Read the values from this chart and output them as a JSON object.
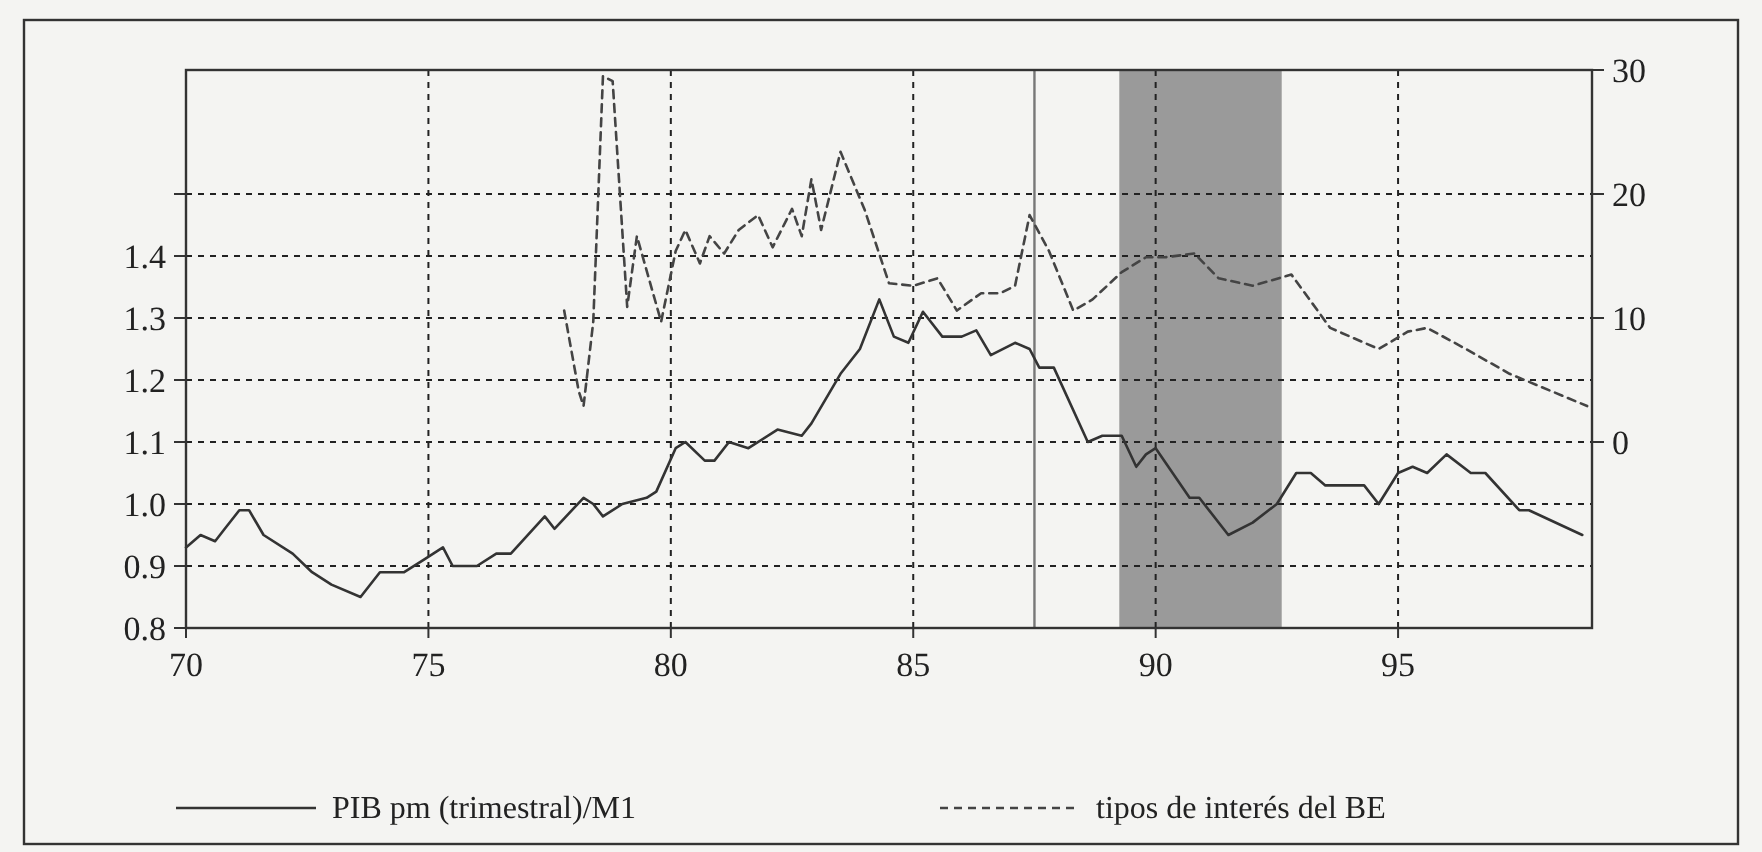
{
  "chart_data": {
    "type": "line",
    "xlim": [
      70,
      99
    ],
    "xticks": [
      70,
      75,
      80,
      85,
      90,
      95
    ],
    "ylim": [
      0.8,
      1.7
    ],
    "yticks": [
      0.8,
      0.9,
      {
        "value": 1.0,
        "label": "1.0"
      },
      1.1,
      1.2,
      1.3,
      1.4,
      {
        "value": 1.5,
        "label": null
      }
    ],
    "y2lim": [
      -15,
      30
    ],
    "y2ticks": [
      0,
      10,
      20,
      30
    ],
    "grid": true,
    "legend": "bottom",
    "bands": [
      {
        "axis": "x",
        "from": 89.25,
        "to": 92.6,
        "color": "#9a9a9a"
      }
    ],
    "ref_lines": [
      {
        "axis": "x",
        "value": 87.5,
        "color": "#777777",
        "line_style": "solid"
      }
    ],
    "series": [
      {
        "name": "PIB pm (trimestral)/M1",
        "color": "#333333",
        "line_style": "solid",
        "x": [
          70,
          70.3,
          70.6,
          70.8,
          71.1,
          71.3,
          71.6,
          72.2,
          72.6,
          73.0,
          73.6,
          74.0,
          74.5,
          74.9,
          75.3,
          75.5,
          76.0,
          76.4,
          76.7,
          77.4,
          77.6,
          78.2,
          78.4,
          78.6,
          79.0,
          79.5,
          79.7,
          80.1,
          80.3,
          80.7,
          80.9,
          81.2,
          81.6,
          82.2,
          82.7,
          82.9,
          83.5,
          83.9,
          84.3,
          84.6,
          84.9,
          85.2,
          85.6,
          86.0,
          86.3,
          86.6,
          87.1,
          87.4,
          87.6,
          87.9,
          88.6,
          88.9,
          89.3,
          89.6,
          89.8,
          90.0,
          90.7,
          90.9,
          91.5,
          92.0,
          92.5,
          92.9,
          93.2,
          93.5,
          93.8,
          94.3,
          94.6,
          95.0,
          95.3,
          95.6,
          96.0,
          96.5,
          96.8,
          97.5,
          97.7,
          98.8
        ],
        "values": [
          0.93,
          0.95,
          0.94,
          0.96,
          0.99,
          0.99,
          0.95,
          0.92,
          0.89,
          0.87,
          0.85,
          0.89,
          0.89,
          0.91,
          0.93,
          0.9,
          0.9,
          0.92,
          0.92,
          0.98,
          0.96,
          1.01,
          1.0,
          0.98,
          1.0,
          1.01,
          1.02,
          1.09,
          1.1,
          1.07,
          1.07,
          1.1,
          1.09,
          1.12,
          1.11,
          1.13,
          1.21,
          1.25,
          1.33,
          1.27,
          1.26,
          1.31,
          1.27,
          1.27,
          1.28,
          1.24,
          1.26,
          1.25,
          1.22,
          1.22,
          1.1,
          1.11,
          1.11,
          1.06,
          1.08,
          1.09,
          1.01,
          1.01,
          0.95,
          0.97,
          1.0,
          1.05,
          1.05,
          1.03,
          1.03,
          1.03,
          1.0,
          1.05,
          1.06,
          1.05,
          1.08,
          1.05,
          1.05,
          0.99,
          0.99,
          0.95
        ]
      },
      {
        "name": "tipos de interés del BE",
        "color": "#444444",
        "line_style": "dashed",
        "axis": "y2",
        "x": [
          77.8,
          78.1,
          78.2,
          78.4,
          78.6,
          78.8,
          79.1,
          79.3,
          79.8,
          80.1,
          80.3,
          80.6,
          80.8,
          81.1,
          81.4,
          81.8,
          82.1,
          82.5,
          82.7,
          82.9,
          83.1,
          83.5,
          84.0,
          84.5,
          85.0,
          85.5,
          85.9,
          86.4,
          86.8,
          87.1,
          87.4,
          87.8,
          88.3,
          88.7,
          89.3,
          89.8,
          90.2,
          90.8,
          91.3,
          92.0,
          92.8,
          93.6,
          94.6,
          95.2,
          95.6,
          96.4,
          97.3,
          98.9
        ],
        "values": [
          10.6,
          4.1,
          2.9,
          9.7,
          29.5,
          29.1,
          10.9,
          16.6,
          9.7,
          15.4,
          17.1,
          14.4,
          16.6,
          15.2,
          17.1,
          18.3,
          15.7,
          18.8,
          16.6,
          21.2,
          17.1,
          23.4,
          18.7,
          12.8,
          12.6,
          13.2,
          10.6,
          12.0,
          12.0,
          12.6,
          18.3,
          15.4,
          10.6,
          11.5,
          13.7,
          14.9,
          14.9,
          15.2,
          13.2,
          12.6,
          13.5,
          9.2,
          7.5,
          8.9,
          9.2,
          7.5,
          5.5,
          2.9
        ]
      }
    ]
  }
}
